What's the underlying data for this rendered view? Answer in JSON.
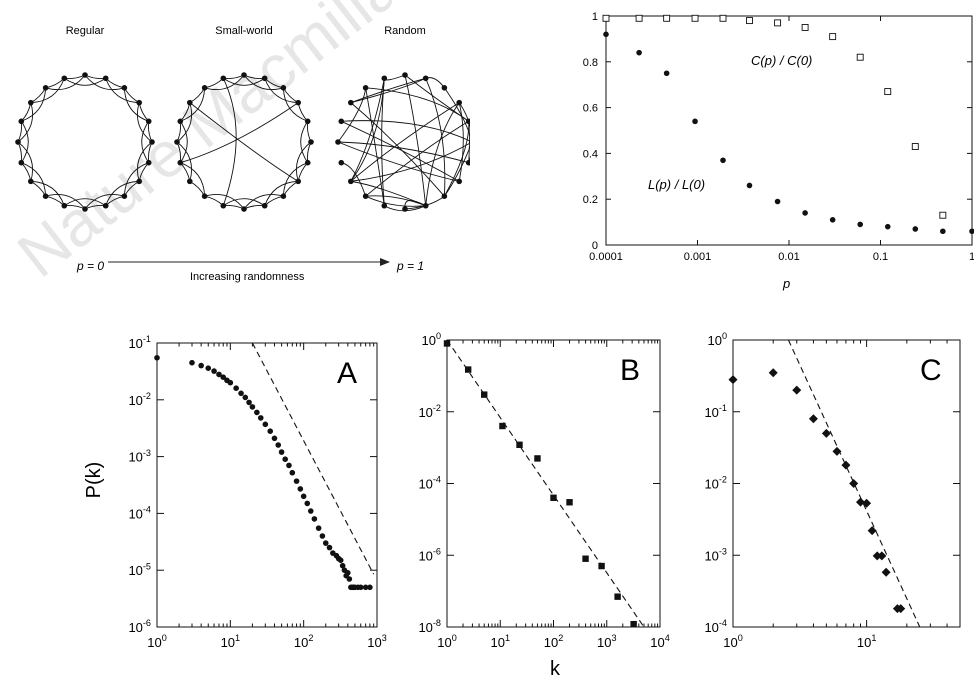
{
  "watermark": "Nature Macmillan",
  "network_diagram": {
    "labels": {
      "regular": "Regular",
      "small_world": "Small-world",
      "random": "Random"
    },
    "left_end": "p = 0",
    "right_end": "p = 1",
    "arrow_label": "Increasing randomness"
  },
  "chart_data": [
    {
      "id": "clustering_path",
      "type": "scatter",
      "x_scale": "log",
      "xlabel": "p",
      "ylabel": "",
      "xlim": [
        0.0001,
        1
      ],
      "ylim": [
        0,
        1
      ],
      "x_ticks": [
        "0.0001",
        "0.001",
        "0.01",
        "0.1",
        "1"
      ],
      "y_ticks": [
        "0",
        "0.2",
        "0.4",
        "0.6",
        "0.8",
        "1"
      ],
      "series": [
        {
          "name": "C(p) / C(0)",
          "marker": "open-square",
          "x": [
            0.0001,
            0.00023,
            0.00046,
            0.00094,
            0.0019,
            0.0037,
            0.0075,
            0.015,
            0.03,
            0.06,
            0.12,
            0.24,
            0.48
          ],
          "y": [
            0.99,
            0.99,
            0.99,
            0.99,
            0.99,
            0.98,
            0.97,
            0.95,
            0.91,
            0.82,
            0.67,
            0.43,
            0.13
          ]
        },
        {
          "name": "L(p) / L(0)",
          "marker": "filled-circle",
          "x": [
            0.0001,
            0.00023,
            0.00046,
            0.00094,
            0.0019,
            0.0037,
            0.0075,
            0.015,
            0.03,
            0.06,
            0.12,
            0.24,
            0.48,
            1
          ],
          "y": [
            0.92,
            0.84,
            0.75,
            0.54,
            0.37,
            0.26,
            0.19,
            0.14,
            0.11,
            0.09,
            0.08,
            0.07,
            0.06,
            0.06
          ]
        }
      ],
      "annotations": {
        "c_label": "C(p) / C(0)",
        "l_label": "L(p) / L(0)"
      }
    },
    {
      "id": "panel_a",
      "type": "scatter",
      "panel_label": "A",
      "x_scale": "log",
      "y_scale": "log",
      "ylabel": "P(k)",
      "xlim": [
        1,
        1000
      ],
      "ylim": [
        1e-06,
        0.1
      ],
      "x_ticks": [
        "10^0",
        "10^1",
        "10^2",
        "10^3"
      ],
      "y_ticks": [
        "10^-6",
        "10^-5",
        "10^-4",
        "10^-3",
        "10^-2",
        "10^-1"
      ],
      "marker": "filled-circle",
      "x": [
        1,
        3,
        4,
        5,
        6,
        7,
        8,
        9,
        10,
        12,
        14,
        16,
        18,
        20,
        23,
        26,
        30,
        35,
        40,
        45,
        50,
        56,
        63,
        70,
        80,
        90,
        100,
        112,
        125,
        140,
        160,
        180,
        200,
        225,
        250,
        280,
        300,
        320,
        340,
        360,
        380,
        400,
        420,
        440,
        460,
        480,
        500,
        550,
        600,
        700,
        800
      ],
      "y": [
        0.055,
        0.045,
        0.04,
        0.036,
        0.032,
        0.028,
        0.025,
        0.022,
        0.02,
        0.016,
        0.013,
        0.011,
        0.009,
        0.0075,
        0.006,
        0.0048,
        0.0037,
        0.0028,
        0.0021,
        0.0016,
        0.0012,
        0.0009,
        0.0007,
        0.00052,
        0.00037,
        0.00027,
        0.0002,
        0.00015,
        0.00011,
        8e-05,
        5.5e-05,
        4e-05,
        3e-05,
        2.5e-05,
        2e-05,
        1.8e-05,
        1.6e-05,
        1.5e-05,
        1.2e-05,
        1e-05,
        8e-06,
        9e-06,
        7e-06,
        5e-06,
        5e-06,
        5e-06,
        5e-06,
        5e-06,
        5e-06,
        5e-06,
        5e-06
      ],
      "fit_line": {
        "style": "dashed",
        "x": [
          20,
          900
        ],
        "y": [
          0.1,
          8.5e-06
        ]
      }
    },
    {
      "id": "panel_b",
      "type": "scatter",
      "panel_label": "B",
      "x_scale": "log",
      "y_scale": "log",
      "xlim": [
        1,
        10000
      ],
      "ylim": [
        1e-08,
        1
      ],
      "x_ticks": [
        "10^0",
        "10^1",
        "10^2",
        "10^3",
        "10^4"
      ],
      "y_ticks": [
        "10^-8",
        "10^-6",
        "10^-4",
        "10^-2",
        "10^0"
      ],
      "marker": "filled-square",
      "x": [
        1,
        2.5,
        5,
        11,
        23,
        50,
        100,
        200,
        400,
        800,
        1600,
        3200
      ],
      "y": [
        0.8,
        0.15,
        0.03,
        0.004,
        0.0012,
        0.0005,
        4e-05,
        3e-05,
        8e-07,
        5e-07,
        7e-08,
        1.2e-08
      ],
      "fit_line": {
        "style": "dashed",
        "x": [
          1,
          5000
        ],
        "y": [
          1,
          1e-08
        ]
      }
    },
    {
      "id": "panel_c",
      "type": "scatter",
      "panel_label": "C",
      "x_scale": "log",
      "y_scale": "log",
      "xlabel": "k",
      "xlim": [
        1,
        50
      ],
      "ylim": [
        0.0001,
        1
      ],
      "x_ticks": [
        "10^0",
        "10^1"
      ],
      "y_ticks": [
        "10^-4",
        "10^-3",
        "10^-2",
        "10^-1",
        "10^0"
      ],
      "marker": "filled-diamond",
      "x": [
        1,
        2,
        3,
        4,
        5,
        6,
        7,
        8,
        9,
        10,
        11,
        12,
        13,
        14,
        17,
        18
      ],
      "y": [
        0.28,
        0.35,
        0.2,
        0.08,
        0.05,
        0.028,
        0.018,
        0.01,
        0.0055,
        0.0053,
        0.0022,
        0.00098,
        0.00098,
        0.00058,
        0.00018,
        0.00018
      ],
      "fit_line": {
        "style": "dashed",
        "x": [
          2.6,
          25
        ],
        "y": [
          1,
          0.0001
        ]
      }
    }
  ]
}
